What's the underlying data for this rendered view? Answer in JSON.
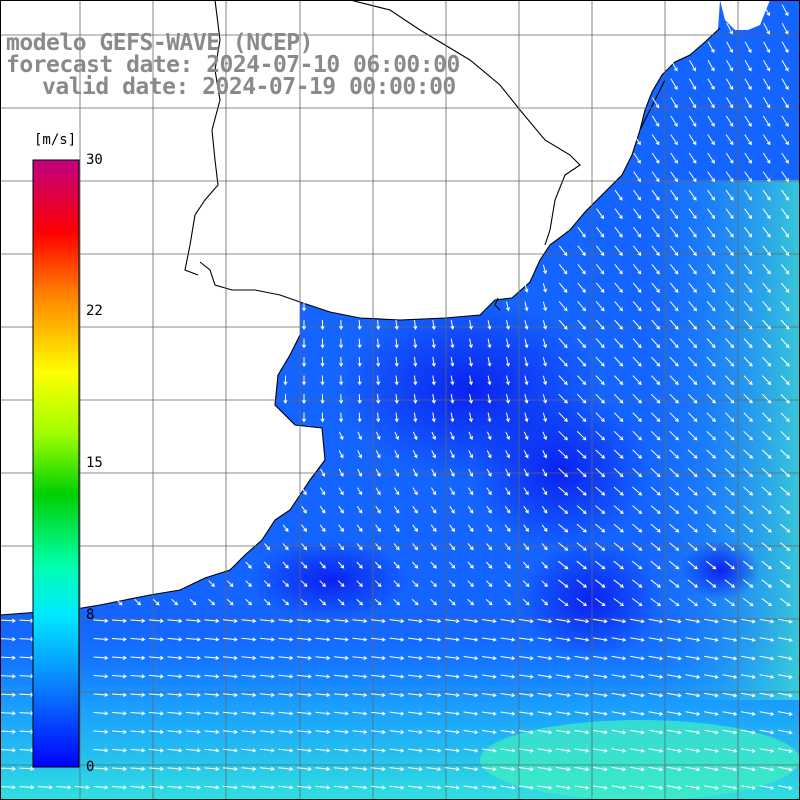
{
  "titles": {
    "line1": "modelo GEFS-WAVE (NCEP)",
    "line2": "forecast date: 2024-07-10 06:00:00",
    "line3": "valid date: 2024-07-19 00:00:00"
  },
  "colorbar": {
    "unit": "[m/s]",
    "ticks": [
      "30",
      "22",
      "15",
      "8",
      "0"
    ],
    "colors": [
      "#0000ff",
      "#0a64ff",
      "#14c8ff",
      "#00ffd0",
      "#00ff00",
      "#ffff00",
      "#ff8000",
      "#ff0000",
      "#c00080"
    ]
  },
  "map": {
    "ocean_low": "#0a32ff",
    "ocean_mid": "#1478ff",
    "ocean_high": "#28d0ff",
    "land": "#ffffff",
    "grid": "#555555"
  }
}
